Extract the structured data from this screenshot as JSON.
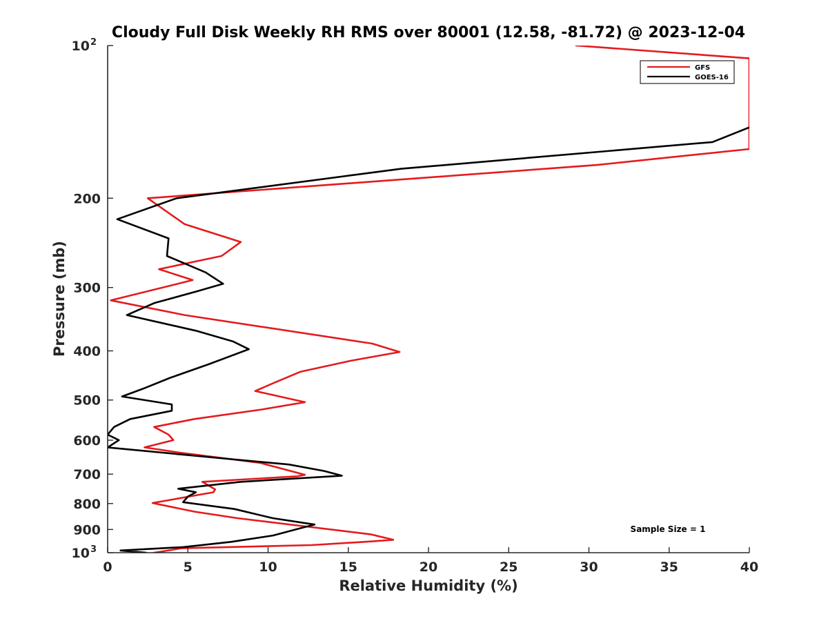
{
  "chart_data": {
    "type": "line",
    "title": "Cloudy Full Disk Weekly RH RMS over 80001 (12.58, -81.72) @ 2023-12-04",
    "xlabel": "Relative Humidity (%)",
    "ylabel": "Pressure (mb)",
    "xlim": [
      0,
      40
    ],
    "ylim": [
      100,
      1000
    ],
    "yscale": "log",
    "y_reversed": true,
    "grid": false,
    "legend_position": "top-right",
    "annotation": "Sample Size = 1",
    "x_ticks": [
      "0",
      "5",
      "10",
      "15",
      "20",
      "25",
      "30",
      "35",
      "40"
    ],
    "x_tick_values": [
      0,
      5,
      10,
      15,
      20,
      25,
      30,
      35,
      40
    ],
    "y_ticks": [
      {
        "value": 100,
        "base": "10",
        "exp": "2"
      },
      {
        "value": 200,
        "base": "200",
        "exp": ""
      },
      {
        "value": 300,
        "base": "300",
        "exp": ""
      },
      {
        "value": 400,
        "base": "400",
        "exp": ""
      },
      {
        "value": 500,
        "base": "500",
        "exp": ""
      },
      {
        "value": 600,
        "base": "600",
        "exp": ""
      },
      {
        "value": 700,
        "base": "700",
        "exp": ""
      },
      {
        "value": 800,
        "base": "800",
        "exp": ""
      },
      {
        "value": 900,
        "base": "900",
        "exp": ""
      },
      {
        "value": 1000,
        "base": "10",
        "exp": "3"
      }
    ],
    "series": [
      {
        "name": "GFS",
        "color": "#e41a1c",
        "points": [
          [
            29.2,
            100
          ],
          [
            40,
            106
          ],
          [
            40,
            160
          ],
          [
            30.5,
            172
          ],
          [
            2.5,
            200
          ],
          [
            4.8,
            225
          ],
          [
            8.3,
            244
          ],
          [
            7.1,
            260
          ],
          [
            3.2,
            276
          ],
          [
            5.3,
            290
          ],
          [
            0.2,
            318
          ],
          [
            4.8,
            340
          ],
          [
            16.5,
            387
          ],
          [
            18.2,
            402
          ],
          [
            15.2,
            418
          ],
          [
            12.0,
            440
          ],
          [
            10.2,
            465
          ],
          [
            9.2,
            480
          ],
          [
            12.3,
            505
          ],
          [
            9.6,
            522
          ],
          [
            5.4,
            545
          ],
          [
            2.9,
            565
          ],
          [
            3.8,
            585
          ],
          [
            4.1,
            600
          ],
          [
            2.3,
            620
          ],
          [
            4.5,
            635
          ],
          [
            9.5,
            665
          ],
          [
            12.3,
            702
          ],
          [
            11.8,
            707
          ],
          [
            5.9,
            725
          ],
          [
            6.7,
            750
          ],
          [
            6.6,
            760
          ],
          [
            2.8,
            798
          ],
          [
            5.4,
            830
          ],
          [
            8.1,
            855
          ],
          [
            12.0,
            885
          ],
          [
            16.4,
            920
          ],
          [
            17.8,
            943
          ],
          [
            16.5,
            950
          ],
          [
            12.7,
            966
          ],
          [
            4.6,
            980
          ],
          [
            2.9,
            1000
          ]
        ]
      },
      {
        "name": "GOES-16",
        "color": "#000000",
        "points": [
          [
            40,
            145
          ],
          [
            37.7,
            155
          ],
          [
            18.3,
            175
          ],
          [
            4.3,
            200
          ],
          [
            0.6,
            220
          ],
          [
            3.8,
            240
          ],
          [
            3.7,
            260
          ],
          [
            6.1,
            280
          ],
          [
            7.2,
            295
          ],
          [
            5.6,
            305
          ],
          [
            2.9,
            322
          ],
          [
            1.2,
            340
          ],
          [
            5.5,
            365
          ],
          [
            7.8,
            383
          ],
          [
            8.8,
            397
          ],
          [
            6.3,
            425
          ],
          [
            3.9,
            452
          ],
          [
            2.2,
            475
          ],
          [
            0.9,
            492
          ],
          [
            4.0,
            510
          ],
          [
            4.0,
            525
          ],
          [
            1.4,
            545
          ],
          [
            0.4,
            565
          ],
          [
            0.0,
            585
          ],
          [
            0.7,
            600
          ],
          [
            0.0,
            620
          ],
          [
            6.8,
            650
          ],
          [
            11.3,
            670
          ],
          [
            13.5,
            690
          ],
          [
            14.6,
            705
          ],
          [
            8.3,
            725
          ],
          [
            4.4,
            748
          ],
          [
            5.5,
            760
          ],
          [
            5.0,
            775
          ],
          [
            4.7,
            795
          ],
          [
            7.9,
            820
          ],
          [
            10.3,
            855
          ],
          [
            12.9,
            880
          ],
          [
            12.0,
            895
          ],
          [
            10.3,
            925
          ],
          [
            7.7,
            952
          ],
          [
            4.7,
            975
          ],
          [
            0.8,
            990
          ],
          [
            2.4,
            1000
          ]
        ]
      }
    ]
  }
}
